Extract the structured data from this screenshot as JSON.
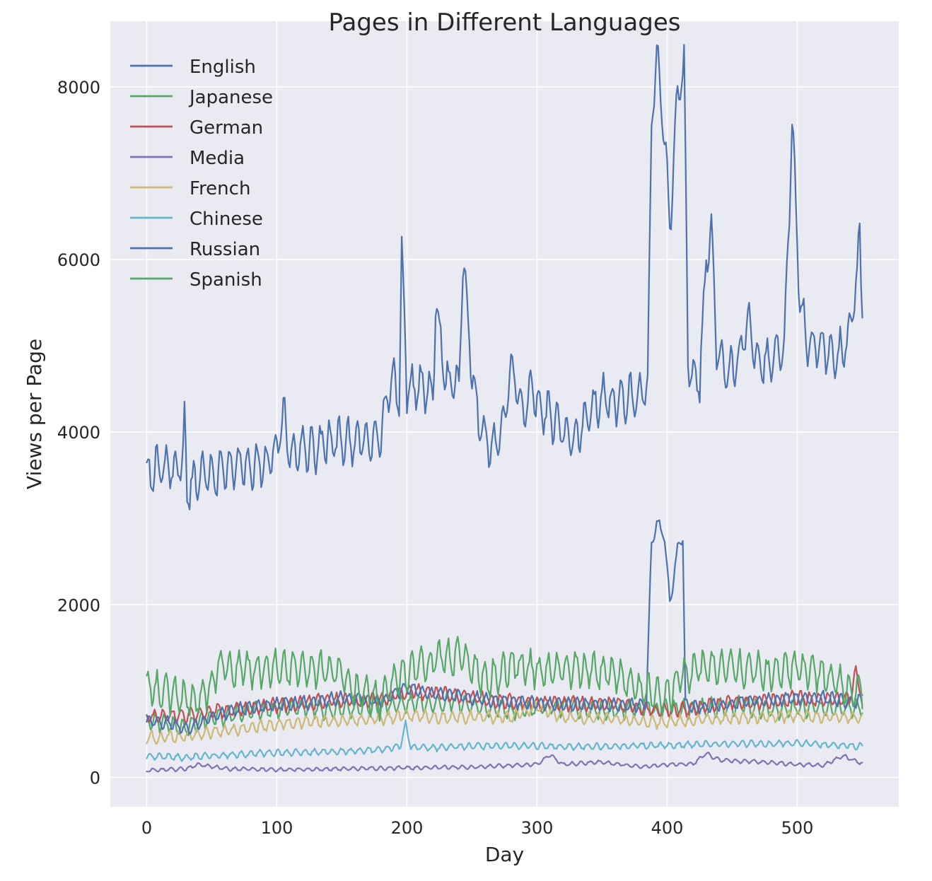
{
  "chart_data": {
    "type": "line",
    "title": "Pages in Different Languages",
    "xlabel": "Day",
    "ylabel": "Views per Page",
    "xlim": [
      -28,
      578
    ],
    "ylim": [
      -340,
      8760
    ],
    "xticks": [
      0,
      100,
      200,
      300,
      400,
      500
    ],
    "yticks": [
      0,
      2000,
      4000,
      6000,
      8000
    ],
    "grid": true,
    "legend_position": "top-left",
    "background": "#eaeaf2",
    "x_range": [
      0,
      550
    ],
    "series": [
      {
        "name": "English",
        "color": "#4c72b0",
        "anchors": [
          [
            0,
            3520
          ],
          [
            10,
            3600
          ],
          [
            20,
            3560
          ],
          [
            28,
            3700
          ],
          [
            29,
            4200
          ],
          [
            31,
            3300
          ],
          [
            40,
            3520
          ],
          [
            50,
            3500
          ],
          [
            60,
            3560
          ],
          [
            70,
            3580
          ],
          [
            80,
            3620
          ],
          [
            90,
            3610
          ],
          [
            100,
            3780
          ],
          [
            105,
            4200
          ],
          [
            110,
            3720
          ],
          [
            120,
            3830
          ],
          [
            130,
            3800
          ],
          [
            140,
            3880
          ],
          [
            150,
            3900
          ],
          [
            160,
            3880
          ],
          [
            170,
            3920
          ],
          [
            180,
            3950
          ],
          [
            185,
            4450
          ],
          [
            190,
            4600
          ],
          [
            194,
            4350
          ],
          [
            196,
            6080
          ],
          [
            200,
            4500
          ],
          [
            210,
            4550
          ],
          [
            220,
            4450
          ],
          [
            222,
            5500
          ],
          [
            230,
            4600
          ],
          [
            240,
            4500
          ],
          [
            243,
            6050
          ],
          [
            250,
            4700
          ],
          [
            255,
            4100
          ],
          [
            265,
            3800
          ],
          [
            275,
            4100
          ],
          [
            280,
            4800
          ],
          [
            290,
            4200
          ],
          [
            295,
            4500
          ],
          [
            300,
            4350
          ],
          [
            310,
            4200
          ],
          [
            320,
            4000
          ],
          [
            330,
            3950
          ],
          [
            340,
            4200
          ],
          [
            350,
            4400
          ],
          [
            360,
            4350
          ],
          [
            370,
            4400
          ],
          [
            380,
            4450
          ],
          [
            385,
            4500
          ],
          [
            388,
            7700
          ],
          [
            392,
            8350
          ],
          [
            398,
            7400
          ],
          [
            402,
            6400
          ],
          [
            408,
            7900
          ],
          [
            413,
            8300
          ],
          [
            416,
            4800
          ],
          [
            420,
            4600
          ],
          [
            425,
            4600
          ],
          [
            430,
            6000
          ],
          [
            434,
            6400
          ],
          [
            438,
            4900
          ],
          [
            448,
            4700
          ],
          [
            455,
            4800
          ],
          [
            462,
            5300
          ],
          [
            470,
            4800
          ],
          [
            480,
            4850
          ],
          [
            490,
            5000
          ],
          [
            496,
            7550
          ],
          [
            502,
            5500
          ],
          [
            508,
            5000
          ],
          [
            520,
            5000
          ],
          [
            530,
            4850
          ],
          [
            540,
            5100
          ],
          [
            546,
            5800
          ],
          [
            548,
            6250
          ],
          [
            551,
            5100
          ]
        ],
        "noise": 400,
        "period": 7,
        "seed": 1
      },
      {
        "name": "Japanese",
        "color": "#55a868",
        "anchors": [
          [
            0,
            650
          ],
          [
            20,
            620
          ],
          [
            30,
            560
          ],
          [
            40,
            650
          ],
          [
            50,
            700
          ],
          [
            60,
            700
          ],
          [
            80,
            760
          ],
          [
            100,
            800
          ],
          [
            120,
            820
          ],
          [
            140,
            780
          ],
          [
            160,
            800
          ],
          [
            180,
            820
          ],
          [
            200,
            860
          ],
          [
            220,
            860
          ],
          [
            240,
            880
          ],
          [
            260,
            800
          ],
          [
            280,
            780
          ],
          [
            300,
            800
          ],
          [
            320,
            820
          ],
          [
            340,
            780
          ],
          [
            360,
            780
          ],
          [
            380,
            800
          ],
          [
            400,
            780
          ],
          [
            420,
            800
          ],
          [
            440,
            820
          ],
          [
            460,
            830
          ],
          [
            480,
            780
          ],
          [
            500,
            800
          ],
          [
            520,
            800
          ],
          [
            540,
            820
          ],
          [
            551,
            800
          ]
        ],
        "noise": 170,
        "period": 7,
        "seed": 2
      },
      {
        "name": "German",
        "color": "#c44e52",
        "anchors": [
          [
            0,
            700
          ],
          [
            30,
            720
          ],
          [
            60,
            780
          ],
          [
            90,
            820
          ],
          [
            120,
            860
          ],
          [
            150,
            900
          ],
          [
            180,
            900
          ],
          [
            200,
            1000
          ],
          [
            220,
            980
          ],
          [
            240,
            950
          ],
          [
            260,
            900
          ],
          [
            280,
            880
          ],
          [
            300,
            860
          ],
          [
            320,
            850
          ],
          [
            340,
            850
          ],
          [
            360,
            860
          ],
          [
            380,
            800
          ],
          [
            400,
            780
          ],
          [
            420,
            800
          ],
          [
            440,
            850
          ],
          [
            460,
            880
          ],
          [
            480,
            880
          ],
          [
            500,
            920
          ],
          [
            520,
            900
          ],
          [
            540,
            900
          ],
          [
            545,
            1200
          ],
          [
            551,
            900
          ]
        ],
        "noise": 130,
        "period": 7,
        "seed": 3
      },
      {
        "name": "Media",
        "color": "#8172b2",
        "anchors": [
          [
            0,
            80
          ],
          [
            30,
            100
          ],
          [
            40,
            150
          ],
          [
            60,
            100
          ],
          [
            100,
            90
          ],
          [
            150,
            100
          ],
          [
            200,
            110
          ],
          [
            250,
            120
          ],
          [
            300,
            150
          ],
          [
            310,
            260
          ],
          [
            320,
            150
          ],
          [
            350,
            180
          ],
          [
            380,
            120
          ],
          [
            400,
            150
          ],
          [
            420,
            160
          ],
          [
            430,
            280
          ],
          [
            440,
            200
          ],
          [
            470,
            180
          ],
          [
            500,
            150
          ],
          [
            520,
            140
          ],
          [
            535,
            250
          ],
          [
            551,
            150
          ]
        ],
        "noise": 35,
        "period": 7,
        "seed": 4
      },
      {
        "name": "French",
        "color": "#ccb974",
        "anchors": [
          [
            0,
            460
          ],
          [
            30,
            480
          ],
          [
            60,
            540
          ],
          [
            90,
            600
          ],
          [
            120,
            640
          ],
          [
            150,
            660
          ],
          [
            180,
            680
          ],
          [
            200,
            720
          ],
          [
            220,
            700
          ],
          [
            240,
            700
          ],
          [
            260,
            700
          ],
          [
            280,
            700
          ],
          [
            300,
            820
          ],
          [
            320,
            700
          ],
          [
            340,
            680
          ],
          [
            360,
            680
          ],
          [
            380,
            640
          ],
          [
            400,
            640
          ],
          [
            420,
            660
          ],
          [
            440,
            680
          ],
          [
            460,
            700
          ],
          [
            480,
            700
          ],
          [
            500,
            720
          ],
          [
            520,
            700
          ],
          [
            540,
            700
          ],
          [
            551,
            680
          ]
        ],
        "noise": 110,
        "period": 7,
        "seed": 5
      },
      {
        "name": "Chinese",
        "color": "#64b5cd",
        "anchors": [
          [
            0,
            250
          ],
          [
            30,
            230
          ],
          [
            60,
            260
          ],
          [
            90,
            280
          ],
          [
            120,
            290
          ],
          [
            150,
            300
          ],
          [
            180,
            320
          ],
          [
            195,
            360
          ],
          [
            199,
            620
          ],
          [
            203,
            350
          ],
          [
            220,
            340
          ],
          [
            240,
            360
          ],
          [
            260,
            360
          ],
          [
            280,
            370
          ],
          [
            300,
            360
          ],
          [
            320,
            360
          ],
          [
            340,
            360
          ],
          [
            360,
            360
          ],
          [
            380,
            370
          ],
          [
            400,
            370
          ],
          [
            420,
            380
          ],
          [
            440,
            390
          ],
          [
            460,
            390
          ],
          [
            480,
            390
          ],
          [
            500,
            400
          ],
          [
            520,
            380
          ],
          [
            540,
            370
          ],
          [
            551,
            360
          ]
        ],
        "noise": 60,
        "period": 7,
        "seed": 6
      },
      {
        "name": "Russian",
        "color": "#4c72b0",
        "anchors": [
          [
            0,
            650
          ],
          [
            20,
            620
          ],
          [
            30,
            550
          ],
          [
            50,
            700
          ],
          [
            80,
            820
          ],
          [
            100,
            840
          ],
          [
            120,
            860
          ],
          [
            150,
            920
          ],
          [
            180,
            880
          ],
          [
            200,
            1050
          ],
          [
            220,
            960
          ],
          [
            240,
            940
          ],
          [
            260,
            900
          ],
          [
            280,
            880
          ],
          [
            300,
            860
          ],
          [
            320,
            840
          ],
          [
            340,
            840
          ],
          [
            360,
            840
          ],
          [
            380,
            830
          ],
          [
            384,
            900
          ],
          [
            388,
            2700
          ],
          [
            392,
            2950
          ],
          [
            398,
            2800
          ],
          [
            402,
            2000
          ],
          [
            408,
            2650
          ],
          [
            412,
            2800
          ],
          [
            414,
            850
          ],
          [
            420,
            820
          ],
          [
            440,
            830
          ],
          [
            460,
            880
          ],
          [
            480,
            900
          ],
          [
            500,
            920
          ],
          [
            520,
            920
          ],
          [
            540,
            880
          ],
          [
            551,
            880
          ]
        ],
        "noise": 120,
        "period": 7,
        "seed": 7
      },
      {
        "name": "Spanish",
        "color": "#55a868",
        "anchors": [
          [
            0,
            1050
          ],
          [
            20,
            950
          ],
          [
            40,
            900
          ],
          [
            50,
            1050
          ],
          [
            55,
            1300
          ],
          [
            70,
            1250
          ],
          [
            100,
            1250
          ],
          [
            120,
            1250
          ],
          [
            140,
            1250
          ],
          [
            150,
            1200
          ],
          [
            160,
            1000
          ],
          [
            180,
            900
          ],
          [
            190,
            1100
          ],
          [
            200,
            1200
          ],
          [
            220,
            1350
          ],
          [
            240,
            1400
          ],
          [
            250,
            1300
          ],
          [
            260,
            1100
          ],
          [
            270,
            1200
          ],
          [
            280,
            1300
          ],
          [
            300,
            1250
          ],
          [
            320,
            1250
          ],
          [
            340,
            1250
          ],
          [
            360,
            1200
          ],
          [
            380,
            1000
          ],
          [
            400,
            950
          ],
          [
            410,
            1150
          ],
          [
            420,
            1250
          ],
          [
            440,
            1300
          ],
          [
            460,
            1250
          ],
          [
            480,
            1200
          ],
          [
            500,
            1250
          ],
          [
            520,
            1200
          ],
          [
            540,
            1000
          ],
          [
            551,
            1050
          ]
        ],
        "noise": 330,
        "period": 7,
        "seed": 8
      }
    ]
  }
}
